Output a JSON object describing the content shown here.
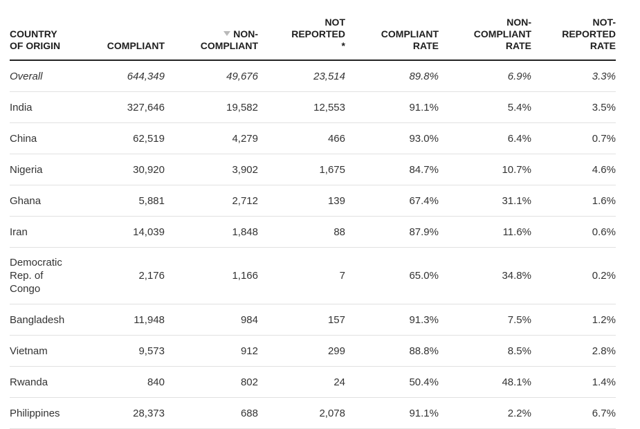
{
  "headers": {
    "country": "COUNTRY\nOF ORIGIN",
    "compliant": "COMPLIANT",
    "non_compliant": "NON-\nCOMPLIANT",
    "not_reported": "NOT\nREPORTED\n*",
    "compliant_rate": "COMPLIANT\nRATE",
    "non_compliant_rate": "NON-\nCOMPLIANT\nRATE",
    "not_reported_rate": "NOT-\nREPORTED\nRATE"
  },
  "sort_icon": "triangle-down-icon",
  "rows": [
    {
      "country": "Overall",
      "compliant": "644,349",
      "non_compliant": "49,676",
      "not_reported": "23,514",
      "compliant_rate": "89.8%",
      "non_compliant_rate": "6.9%",
      "not_reported_rate": "3.3%"
    },
    {
      "country": "India",
      "compliant": "327,646",
      "non_compliant": "19,582",
      "not_reported": "12,553",
      "compliant_rate": "91.1%",
      "non_compliant_rate": "5.4%",
      "not_reported_rate": "3.5%"
    },
    {
      "country": "China",
      "compliant": "62,519",
      "non_compliant": "4,279",
      "not_reported": "466",
      "compliant_rate": "93.0%",
      "non_compliant_rate": "6.4%",
      "not_reported_rate": "0.7%"
    },
    {
      "country": "Nigeria",
      "compliant": "30,920",
      "non_compliant": "3,902",
      "not_reported": "1,675",
      "compliant_rate": "84.7%",
      "non_compliant_rate": "10.7%",
      "not_reported_rate": "4.6%"
    },
    {
      "country": "Ghana",
      "compliant": "5,881",
      "non_compliant": "2,712",
      "not_reported": "139",
      "compliant_rate": "67.4%",
      "non_compliant_rate": "31.1%",
      "not_reported_rate": "1.6%"
    },
    {
      "country": "Iran",
      "compliant": "14,039",
      "non_compliant": "1,848",
      "not_reported": "88",
      "compliant_rate": "87.9%",
      "non_compliant_rate": "11.6%",
      "not_reported_rate": "0.6%"
    },
    {
      "country": "Democratic Rep. of Congo",
      "compliant": "2,176",
      "non_compliant": "1,166",
      "not_reported": "7",
      "compliant_rate": "65.0%",
      "non_compliant_rate": "34.8%",
      "not_reported_rate": "0.2%"
    },
    {
      "country": "Bangladesh",
      "compliant": "11,948",
      "non_compliant": "984",
      "not_reported": "157",
      "compliant_rate": "91.3%",
      "non_compliant_rate": "7.5%",
      "not_reported_rate": "1.2%"
    },
    {
      "country": "Vietnam",
      "compliant": "9,573",
      "non_compliant": "912",
      "not_reported": "299",
      "compliant_rate": "88.8%",
      "non_compliant_rate": "8.5%",
      "not_reported_rate": "2.8%"
    },
    {
      "country": "Rwanda",
      "compliant": "840",
      "non_compliant": "802",
      "not_reported": "24",
      "compliant_rate": "50.4%",
      "non_compliant_rate": "48.1%",
      "not_reported_rate": "1.4%"
    },
    {
      "country": "Philippines",
      "compliant": "28,373",
      "non_compliant": "688",
      "not_reported": "2,078",
      "compliant_rate": "91.1%",
      "non_compliant_rate": "2.2%",
      "not_reported_rate": "6.7%"
    }
  ]
}
